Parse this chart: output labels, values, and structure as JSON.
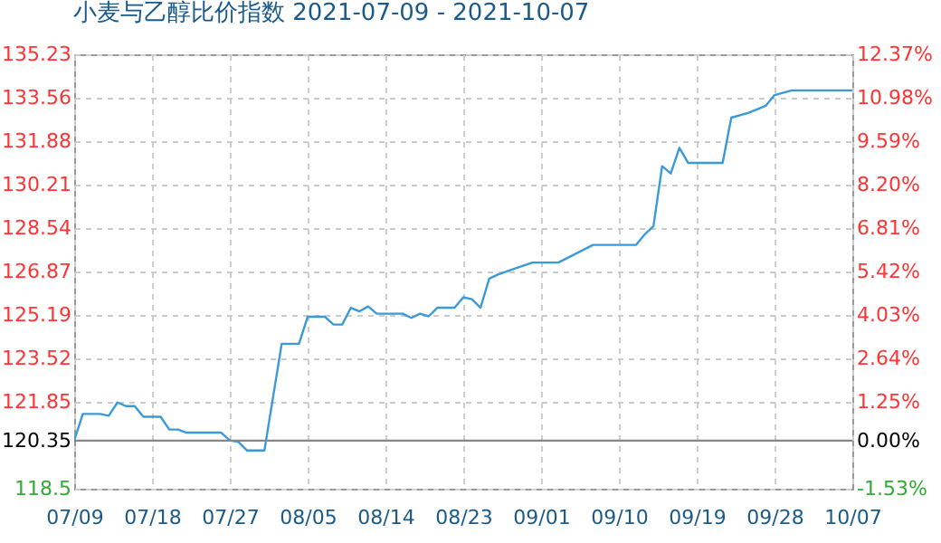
{
  "chart_data": {
    "type": "line",
    "title": "小麦与乙醇比价指数 2021-07-09 - 2021-10-07",
    "x": [
      "2021-07-09",
      "2021-07-10",
      "2021-07-12",
      "2021-07-13",
      "2021-07-14",
      "2021-07-15",
      "2021-07-16",
      "2021-07-17",
      "2021-07-19",
      "2021-07-20",
      "2021-07-21",
      "2021-07-22",
      "2021-07-26",
      "2021-07-27",
      "2021-07-28",
      "2021-07-29",
      "2021-07-31",
      "2021-08-02",
      "2021-08-04",
      "2021-08-05",
      "2021-08-07",
      "2021-08-08",
      "2021-08-09",
      "2021-08-10",
      "2021-08-11",
      "2021-08-12",
      "2021-08-13",
      "2021-08-16",
      "2021-08-17",
      "2021-08-18",
      "2021-08-19",
      "2021-08-20",
      "2021-08-22",
      "2021-08-23",
      "2021-08-24",
      "2021-08-25",
      "2021-08-26",
      "2021-08-27",
      "2021-08-29",
      "2021-08-31",
      "2021-09-03",
      "2021-09-07",
      "2021-09-12",
      "2021-09-13",
      "2021-09-14",
      "2021-09-15",
      "2021-09-16",
      "2021-09-17",
      "2021-09-18",
      "2021-09-22",
      "2021-09-23",
      "2021-09-25",
      "2021-09-27",
      "2021-09-28",
      "2021-09-30",
      "2021-10-07"
    ],
    "series": [
      {
        "color": "#3a9ad9",
        "values": [
          120.35,
          121.38,
          121.38,
          121.31,
          121.82,
          121.68,
          121.68,
          121.27,
          121.27,
          120.78,
          120.78,
          120.66,
          120.66,
          120.36,
          120.3,
          119.97,
          119.97,
          124.08,
          124.08,
          125.12,
          125.12,
          124.82,
          124.82,
          125.47,
          125.33,
          125.52,
          125.24,
          125.24,
          125.08,
          125.24,
          125.14,
          125.47,
          125.47,
          125.87,
          125.8,
          125.47,
          126.59,
          126.75,
          126.98,
          127.21,
          127.21,
          127.89,
          127.89,
          128.3,
          128.61,
          130.92,
          130.64,
          131.63,
          131.05,
          131.05,
          132.79,
          132.98,
          133.25,
          133.66,
          133.84,
          133.84
        ]
      }
    ],
    "xlim": [
      "2021-07-09",
      "2021-10-07"
    ],
    "xticks": [
      {
        "value": "2021-07-09",
        "label": "07/09"
      },
      {
        "value": "2021-07-18",
        "label": "07/18"
      },
      {
        "value": "2021-07-27",
        "label": "07/27"
      },
      {
        "value": "2021-08-05",
        "label": "08/05"
      },
      {
        "value": "2021-08-14",
        "label": "08/14"
      },
      {
        "value": "2021-08-23",
        "label": "08/23"
      },
      {
        "value": "2021-09-01",
        "label": "09/01"
      },
      {
        "value": "2021-09-10",
        "label": "09/10"
      },
      {
        "value": "2021-09-19",
        "label": "09/19"
      },
      {
        "value": "2021-09-28",
        "label": "09/28"
      },
      {
        "value": "2021-10-07",
        "label": "10/07"
      }
    ],
    "ylim": [
      118.5,
      135.23
    ],
    "yticks": [
      118.5,
      120.35,
      121.85,
      123.52,
      125.19,
      126.87,
      128.54,
      130.21,
      131.88,
      133.56,
      135.23
    ],
    "y2lim": [
      -1.53,
      12.37
    ],
    "y2ticks": [
      {
        "value": -1.53,
        "label": "-1.53%"
      },
      {
        "value": 0,
        "label": "0.00%"
      },
      {
        "value": 1.25,
        "label": "1.25%"
      },
      {
        "value": 2.64,
        "label": "2.64%"
      },
      {
        "value": 4.03,
        "label": "4.03%"
      },
      {
        "value": 5.42,
        "label": "5.42%"
      },
      {
        "value": 6.81,
        "label": "6.81%"
      },
      {
        "value": 8.2,
        "label": "8.20%"
      },
      {
        "value": 9.59,
        "label": "9.59%"
      },
      {
        "value": 10.98,
        "label": "10.98%"
      },
      {
        "value": 12.37,
        "label": "12.37%"
      }
    ],
    "ref_lines": [
      {
        "axis": "y",
        "value": 120.35,
        "color": "#888888"
      }
    ],
    "grid": true
  }
}
